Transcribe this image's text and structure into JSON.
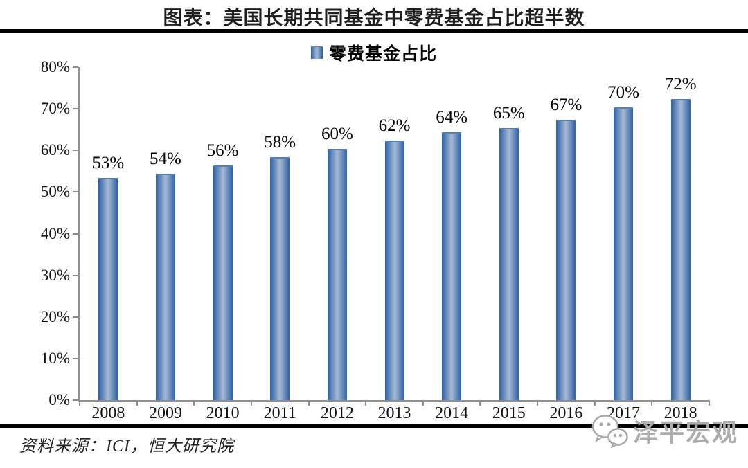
{
  "title": "图表：美国长期共同基金中零费基金占比超半数",
  "legend": "零费基金占比",
  "source": "资料来源：ICI，恒大研究院",
  "watermark": "泽平宏观",
  "colors": {
    "bar_edge": "#2a61a8",
    "bar_center": "#a9bad3",
    "axis": "#8f8f8f",
    "divider": "#000000",
    "watermark_gray": "#adadad"
  },
  "chart_data": {
    "type": "bar",
    "title": "图表：美国长期共同基金中零费基金占比超半数",
    "legend_entries": [
      "零费基金占比"
    ],
    "legend_position": "top",
    "categories": [
      "2008",
      "2009",
      "2010",
      "2011",
      "2012",
      "2013",
      "2014",
      "2015",
      "2016",
      "2017",
      "2018"
    ],
    "values": [
      53,
      54,
      56,
      58,
      60,
      62,
      64,
      65,
      67,
      70,
      72
    ],
    "value_labels": [
      "53%",
      "54%",
      "56%",
      "58%",
      "60%",
      "62%",
      "64%",
      "65%",
      "67%",
      "70%",
      "72%"
    ],
    "unit": "%",
    "xlabel": "",
    "ylabel": "",
    "ylim": [
      0,
      80
    ],
    "ytick_step": 10,
    "yticks": [
      "0%",
      "10%",
      "20%",
      "30%",
      "40%",
      "50%",
      "60%",
      "70%",
      "80%"
    ],
    "grid": false
  }
}
